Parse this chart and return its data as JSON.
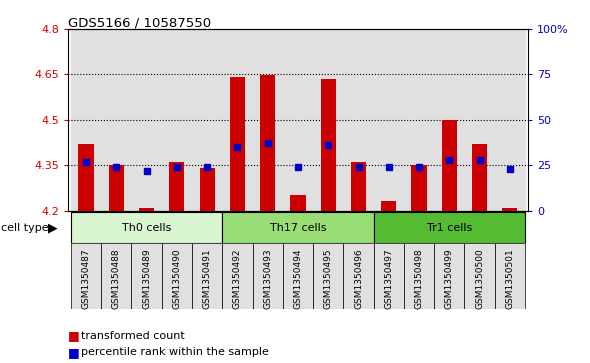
{
  "title": "GDS5166 / 10587550",
  "samples": [
    "GSM1350487",
    "GSM1350488",
    "GSM1350489",
    "GSM1350490",
    "GSM1350491",
    "GSM1350492",
    "GSM1350493",
    "GSM1350494",
    "GSM1350495",
    "GSM1350496",
    "GSM1350497",
    "GSM1350498",
    "GSM1350499",
    "GSM1350500",
    "GSM1350501"
  ],
  "bar_values": [
    4.42,
    4.35,
    4.21,
    4.36,
    4.34,
    4.64,
    4.648,
    4.25,
    4.635,
    4.36,
    4.23,
    4.35,
    4.5,
    4.42,
    4.21
  ],
  "percentile_values": [
    27,
    24,
    22,
    24,
    24,
    35,
    37,
    24,
    36,
    24,
    24,
    24,
    28,
    28,
    23
  ],
  "ymin": 4.2,
  "ymax": 4.8,
  "yticks": [
    4.2,
    4.35,
    4.5,
    4.65,
    4.8
  ],
  "right_yticks": [
    0,
    25,
    50,
    75,
    100
  ],
  "dotted_lines": [
    4.35,
    4.5,
    4.65
  ],
  "bar_color": "#cc0000",
  "dot_color": "#0000cc",
  "cell_types": [
    {
      "label": "Th0 cells",
      "start": 0,
      "end": 5,
      "color": "#d8f5d0"
    },
    {
      "label": "Th17 cells",
      "start": 5,
      "end": 10,
      "color": "#99dd77"
    },
    {
      "label": "Tr1 cells",
      "start": 10,
      "end": 15,
      "color": "#55bb33"
    }
  ],
  "bar_width": 0.5,
  "ylabel_color_left": "#cc0000",
  "ylabel_color_right": "#0000cc",
  "plot_bg_color": "#ffffff",
  "col_bg_color": "#e0e0e0"
}
